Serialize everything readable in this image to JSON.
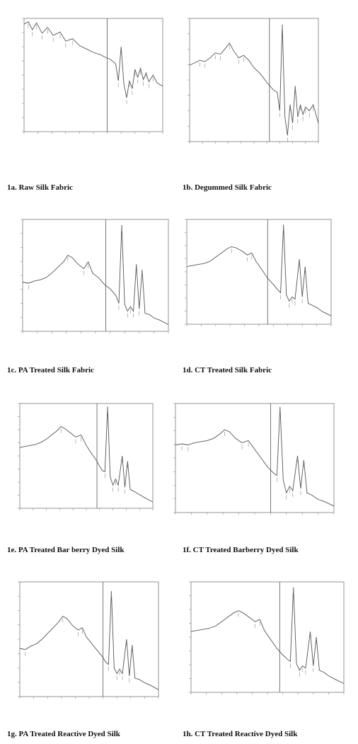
{
  "chart_data": [
    {
      "id": "1a",
      "caption": "1a. Raw Silk Fabric",
      "type": "line",
      "series": [
        {
          "values": [
            [
              0,
              0.95
            ],
            [
              0.03,
              0.97
            ],
            [
              0.06,
              0.9
            ],
            [
              0.09,
              0.96
            ],
            [
              0.13,
              0.87
            ],
            [
              0.17,
              0.92
            ],
            [
              0.21,
              0.85
            ],
            [
              0.26,
              0.88
            ],
            [
              0.3,
              0.8
            ],
            [
              0.35,
              0.82
            ],
            [
              0.4,
              0.76
            ],
            [
              0.45,
              0.73
            ],
            [
              0.5,
              0.7
            ],
            [
              0.55,
              0.68
            ],
            [
              0.58,
              0.66
            ],
            [
              0.62,
              0.64
            ],
            [
              0.64,
              0.62
            ],
            [
              0.66,
              0.6
            ],
            [
              0.68,
              0.45
            ],
            [
              0.7,
              0.75
            ],
            [
              0.72,
              0.42
            ],
            [
              0.74,
              0.3
            ],
            [
              0.76,
              0.45
            ],
            [
              0.78,
              0.38
            ],
            [
              0.8,
              0.55
            ],
            [
              0.82,
              0.48
            ],
            [
              0.84,
              0.56
            ],
            [
              0.86,
              0.46
            ],
            [
              0.88,
              0.52
            ],
            [
              0.9,
              0.44
            ],
            [
              0.93,
              0.5
            ],
            [
              0.96,
              0.43
            ],
            [
              1,
              0.4
            ]
          ]
        }
      ],
      "divider": 0.6
    },
    {
      "id": "1b",
      "caption": "1b.  Degummed Silk Fabric",
      "type": "line",
      "series": [
        {
          "values": [
            [
              0,
              0.62
            ],
            [
              0.04,
              0.64
            ],
            [
              0.08,
              0.66
            ],
            [
              0.12,
              0.65
            ],
            [
              0.16,
              0.68
            ],
            [
              0.2,
              0.72
            ],
            [
              0.24,
              0.71
            ],
            [
              0.28,
              0.76
            ],
            [
              0.31,
              0.8
            ],
            [
              0.34,
              0.74
            ],
            [
              0.38,
              0.68
            ],
            [
              0.42,
              0.7
            ],
            [
              0.46,
              0.66
            ],
            [
              0.5,
              0.6
            ],
            [
              0.55,
              0.55
            ],
            [
              0.6,
              0.48
            ],
            [
              0.65,
              0.42
            ],
            [
              0.68,
              0.4
            ],
            [
              0.7,
              0.25
            ],
            [
              0.72,
              0.95
            ],
            [
              0.74,
              0.2
            ],
            [
              0.76,
              0.05
            ],
            [
              0.78,
              0.3
            ],
            [
              0.8,
              0.15
            ],
            [
              0.82,
              0.45
            ],
            [
              0.84,
              0.2
            ],
            [
              0.86,
              0.3
            ],
            [
              0.88,
              0.22
            ],
            [
              0.9,
              0.28
            ],
            [
              0.93,
              0.25
            ],
            [
              0.96,
              0.3
            ],
            [
              1,
              0.15
            ]
          ]
        }
      ],
      "divider": 0.62
    },
    {
      "id": "1c",
      "caption": "1c.  PA Treated Silk Fabric",
      "type": "line",
      "series": [
        {
          "values": [
            [
              0,
              0.44
            ],
            [
              0.04,
              0.43
            ],
            [
              0.08,
              0.45
            ],
            [
              0.12,
              0.46
            ],
            [
              0.16,
              0.48
            ],
            [
              0.2,
              0.52
            ],
            [
              0.24,
              0.57
            ],
            [
              0.28,
              0.62
            ],
            [
              0.31,
              0.68
            ],
            [
              0.34,
              0.66
            ],
            [
              0.38,
              0.6
            ],
            [
              0.42,
              0.56
            ],
            [
              0.45,
              0.62
            ],
            [
              0.48,
              0.52
            ],
            [
              0.52,
              0.48
            ],
            [
              0.56,
              0.42
            ],
            [
              0.6,
              0.38
            ],
            [
              0.64,
              0.32
            ],
            [
              0.66,
              0.25
            ],
            [
              0.68,
              0.95
            ],
            [
              0.7,
              0.24
            ],
            [
              0.72,
              0.18
            ],
            [
              0.74,
              0.22
            ],
            [
              0.76,
              0.18
            ],
            [
              0.78,
              0.6
            ],
            [
              0.8,
              0.2
            ],
            [
              0.82,
              0.55
            ],
            [
              0.84,
              0.16
            ],
            [
              0.87,
              0.15
            ],
            [
              0.9,
              0.12
            ],
            [
              0.94,
              0.1
            ],
            [
              1,
              0.06
            ]
          ]
        }
      ],
      "divider": 0.57
    },
    {
      "id": "1d",
      "caption": "1d.   CT Treated Silk Fabric",
      "type": "line",
      "series": [
        {
          "values": [
            [
              0,
              0.55
            ],
            [
              0.04,
              0.56
            ],
            [
              0.08,
              0.57
            ],
            [
              0.12,
              0.58
            ],
            [
              0.16,
              0.6
            ],
            [
              0.2,
              0.64
            ],
            [
              0.24,
              0.68
            ],
            [
              0.28,
              0.72
            ],
            [
              0.31,
              0.74
            ],
            [
              0.34,
              0.73
            ],
            [
              0.38,
              0.7
            ],
            [
              0.42,
              0.66
            ],
            [
              0.45,
              0.68
            ],
            [
              0.48,
              0.6
            ],
            [
              0.52,
              0.52
            ],
            [
              0.56,
              0.44
            ],
            [
              0.6,
              0.38
            ],
            [
              0.63,
              0.33
            ],
            [
              0.65,
              0.3
            ],
            [
              0.67,
              0.95
            ],
            [
              0.69,
              0.28
            ],
            [
              0.71,
              0.22
            ],
            [
              0.73,
              0.26
            ],
            [
              0.75,
              0.24
            ],
            [
              0.78,
              0.62
            ],
            [
              0.8,
              0.26
            ],
            [
              0.82,
              0.55
            ],
            [
              0.84,
              0.2
            ],
            [
              0.87,
              0.18
            ],
            [
              0.9,
              0.16
            ],
            [
              0.94,
              0.12
            ],
            [
              1,
              0.08
            ]
          ]
        }
      ],
      "divider": 0.56
    },
    {
      "id": "1e",
      "caption": "1e.  PA Treated Bar berry Dyed Silk",
      "type": "line",
      "series": [
        {
          "values": [
            [
              0,
              0.58
            ],
            [
              0.04,
              0.59
            ],
            [
              0.08,
              0.6
            ],
            [
              0.12,
              0.61
            ],
            [
              0.16,
              0.63
            ],
            [
              0.2,
              0.66
            ],
            [
              0.24,
              0.7
            ],
            [
              0.28,
              0.74
            ],
            [
              0.31,
              0.78
            ],
            [
              0.34,
              0.76
            ],
            [
              0.38,
              0.72
            ],
            [
              0.42,
              0.68
            ],
            [
              0.46,
              0.7
            ],
            [
              0.5,
              0.6
            ],
            [
              0.54,
              0.52
            ],
            [
              0.58,
              0.45
            ],
            [
              0.6,
              0.4
            ],
            [
              0.62,
              0.36
            ],
            [
              0.64,
              0.35
            ],
            [
              0.66,
              0.97
            ],
            [
              0.68,
              0.3
            ],
            [
              0.7,
              0.22
            ],
            [
              0.72,
              0.28
            ],
            [
              0.74,
              0.22
            ],
            [
              0.77,
              0.5
            ],
            [
              0.79,
              0.2
            ],
            [
              0.81,
              0.45
            ],
            [
              0.83,
              0.18
            ],
            [
              0.86,
              0.16
            ],
            [
              0.9,
              0.13
            ],
            [
              0.94,
              0.1
            ],
            [
              1,
              0.06
            ]
          ]
        }
      ],
      "divider": 0.58
    },
    {
      "id": "1f",
      "caption": "1f.  CT Treated Barberry Dyed Silk",
      "type": "line",
      "series": [
        {
          "values": [
            [
              0,
              0.62
            ],
            [
              0.04,
              0.63
            ],
            [
              0.08,
              0.62
            ],
            [
              0.12,
              0.64
            ],
            [
              0.16,
              0.65
            ],
            [
              0.2,
              0.66
            ],
            [
              0.24,
              0.68
            ],
            [
              0.28,
              0.72
            ],
            [
              0.31,
              0.76
            ],
            [
              0.34,
              0.74
            ],
            [
              0.38,
              0.68
            ],
            [
              0.42,
              0.64
            ],
            [
              0.46,
              0.66
            ],
            [
              0.5,
              0.58
            ],
            [
              0.54,
              0.5
            ],
            [
              0.58,
              0.42
            ],
            [
              0.62,
              0.36
            ],
            [
              0.64,
              0.34
            ],
            [
              0.66,
              0.97
            ],
            [
              0.68,
              0.3
            ],
            [
              0.7,
              0.18
            ],
            [
              0.72,
              0.24
            ],
            [
              0.74,
              0.2
            ],
            [
              0.77,
              0.52
            ],
            [
              0.79,
              0.22
            ],
            [
              0.81,
              0.48
            ],
            [
              0.83,
              0.18
            ],
            [
              0.86,
              0.16
            ],
            [
              0.9,
              0.12
            ],
            [
              0.94,
              0.1
            ],
            [
              1,
              0.06
            ]
          ]
        }
      ],
      "divider": 0.6
    },
    {
      "id": "1g",
      "caption": "1g.    PA Treated Reactive Dyed Silk",
      "type": "line",
      "series": [
        {
          "values": [
            [
              0,
              0.42
            ],
            [
              0.04,
              0.41
            ],
            [
              0.08,
              0.44
            ],
            [
              0.12,
              0.46
            ],
            [
              0.16,
              0.5
            ],
            [
              0.2,
              0.55
            ],
            [
              0.24,
              0.6
            ],
            [
              0.28,
              0.65
            ],
            [
              0.31,
              0.7
            ],
            [
              0.34,
              0.68
            ],
            [
              0.38,
              0.62
            ],
            [
              0.42,
              0.58
            ],
            [
              0.45,
              0.6
            ],
            [
              0.48,
              0.52
            ],
            [
              0.52,
              0.46
            ],
            [
              0.56,
              0.4
            ],
            [
              0.6,
              0.34
            ],
            [
              0.62,
              0.3
            ],
            [
              0.64,
              0.28
            ],
            [
              0.66,
              0.92
            ],
            [
              0.68,
              0.25
            ],
            [
              0.7,
              0.2
            ],
            [
              0.72,
              0.24
            ],
            [
              0.74,
              0.2
            ],
            [
              0.77,
              0.5
            ],
            [
              0.79,
              0.18
            ],
            [
              0.81,
              0.45
            ],
            [
              0.83,
              0.16
            ],
            [
              0.86,
              0.15
            ],
            [
              0.9,
              0.12
            ],
            [
              0.94,
              0.1
            ],
            [
              1,
              0.06
            ]
          ]
        }
      ],
      "divider": 0.6
    },
    {
      "id": "1h",
      "caption": "1h.  CT Treated Reactive Dyed Silk",
      "type": "line",
      "series": [
        {
          "values": [
            [
              0,
              0.55
            ],
            [
              0.04,
              0.56
            ],
            [
              0.08,
              0.57
            ],
            [
              0.12,
              0.58
            ],
            [
              0.16,
              0.6
            ],
            [
              0.2,
              0.64
            ],
            [
              0.24,
              0.68
            ],
            [
              0.28,
              0.72
            ],
            [
              0.31,
              0.74
            ],
            [
              0.34,
              0.72
            ],
            [
              0.38,
              0.68
            ],
            [
              0.42,
              0.64
            ],
            [
              0.45,
              0.66
            ],
            [
              0.48,
              0.56
            ],
            [
              0.52,
              0.48
            ],
            [
              0.56,
              0.4
            ],
            [
              0.6,
              0.34
            ],
            [
              0.63,
              0.3
            ],
            [
              0.65,
              0.28
            ],
            [
              0.67,
              0.95
            ],
            [
              0.69,
              0.26
            ],
            [
              0.71,
              0.2
            ],
            [
              0.73,
              0.24
            ],
            [
              0.75,
              0.22
            ],
            [
              0.78,
              0.55
            ],
            [
              0.8,
              0.24
            ],
            [
              0.82,
              0.5
            ],
            [
              0.84,
              0.2
            ],
            [
              0.87,
              0.18
            ],
            [
              0.9,
              0.15
            ],
            [
              0.94,
              0.12
            ],
            [
              1,
              0.08
            ]
          ]
        }
      ],
      "divider": 0.58
    }
  ],
  "style": {
    "line_color": "#555555",
    "frame_color": "#7a7a7a",
    "divider_color": "#555555",
    "label_color": "#888888"
  }
}
